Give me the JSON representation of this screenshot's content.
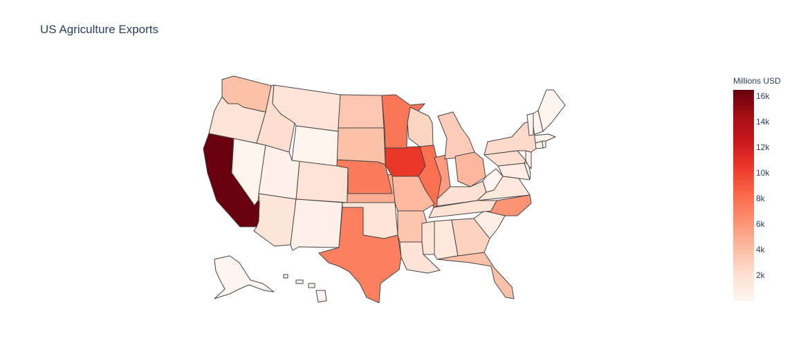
{
  "chart_data": {
    "type": "choropleth",
    "title": "US Agriculture Exports",
    "scope": "usa",
    "colorscale": "Reds",
    "colorbar": {
      "title": "Millions USD",
      "range": [
        0,
        16500
      ],
      "ticks": [
        2000,
        4000,
        6000,
        8000,
        10000,
        12000,
        14000,
        16000
      ],
      "tick_labels": [
        "2k",
        "4k",
        "6k",
        "8k",
        "10k",
        "12k",
        "14k",
        "16k"
      ]
    },
    "locations": [
      "AL",
      "AK",
      "AZ",
      "AR",
      "CA",
      "CO",
      "CT",
      "DE",
      "FL",
      "GA",
      "HI",
      "ID",
      "IL",
      "IN",
      "IA",
      "KS",
      "KY",
      "LA",
      "ME",
      "MD",
      "MA",
      "MI",
      "MN",
      "MS",
      "MO",
      "MT",
      "NE",
      "NV",
      "NH",
      "NJ",
      "NM",
      "NY",
      "NC",
      "ND",
      "OH",
      "OK",
      "OR",
      "PA",
      "RI",
      "SC",
      "SD",
      "TN",
      "TX",
      "UT",
      "VT",
      "VA",
      "WA",
      "WV",
      "WI",
      "WY"
    ],
    "values": [
      1390,
      13,
      1463,
      3587,
      16472,
      1851,
      259,
      282,
      3765,
      2861,
      148,
      2175,
      7924,
      5720,
      10554,
      4805,
      1950,
      1790,
      35,
      748,
      200,
      3152,
      7630,
      1780,
      4233,
      1680,
      7300,
      170,
      30,
      350,
      490,
      2400,
      6100,
      3500,
      4325,
      1750,
      1700,
      2200,
      15,
      700,
      3800,
      1900,
      7100,
      420,
      80,
      1300,
      3800,
      80,
      2700,
      130
    ]
  }
}
